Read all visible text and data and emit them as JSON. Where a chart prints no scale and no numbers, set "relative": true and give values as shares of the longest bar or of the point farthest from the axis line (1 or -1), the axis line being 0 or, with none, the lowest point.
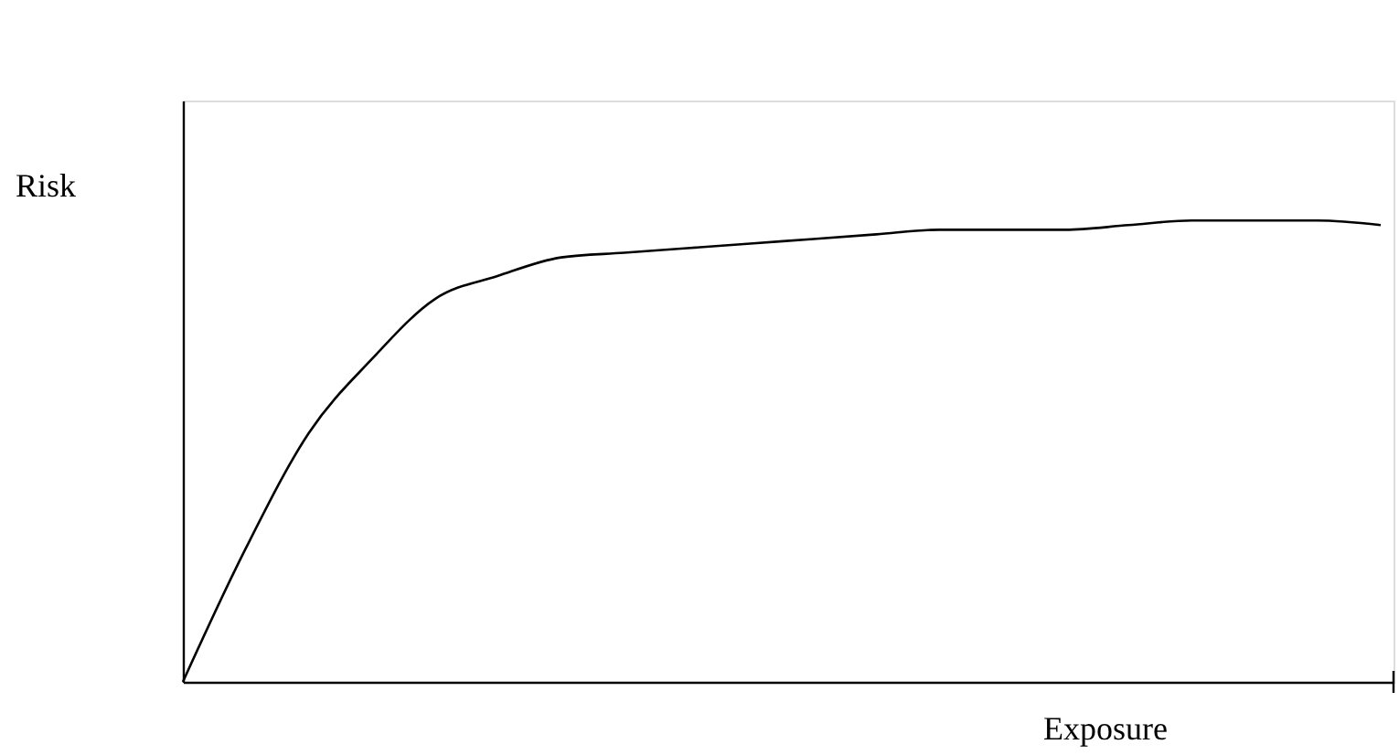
{
  "chart_data": {
    "type": "line",
    "relative": true,
    "xlabel": "Exposure",
    "ylabel": "Risk",
    "color": "#000000",
    "marker": "none",
    "grid": false,
    "tick_labels": false,
    "categories": [
      null,
      null,
      null,
      null,
      null,
      null,
      null,
      null,
      null,
      null,
      null,
      null,
      null,
      null,
      null,
      null,
      null,
      null,
      null,
      null
    ],
    "values": [
      0,
      0.29,
      0.54,
      0.7,
      0.83,
      0.88,
      0.92,
      0.93,
      0.94,
      0.95,
      0.96,
      0.97,
      0.98,
      0.98,
      0.98,
      0.99,
      1.0,
      1.0,
      1.0,
      0.99
    ]
  }
}
